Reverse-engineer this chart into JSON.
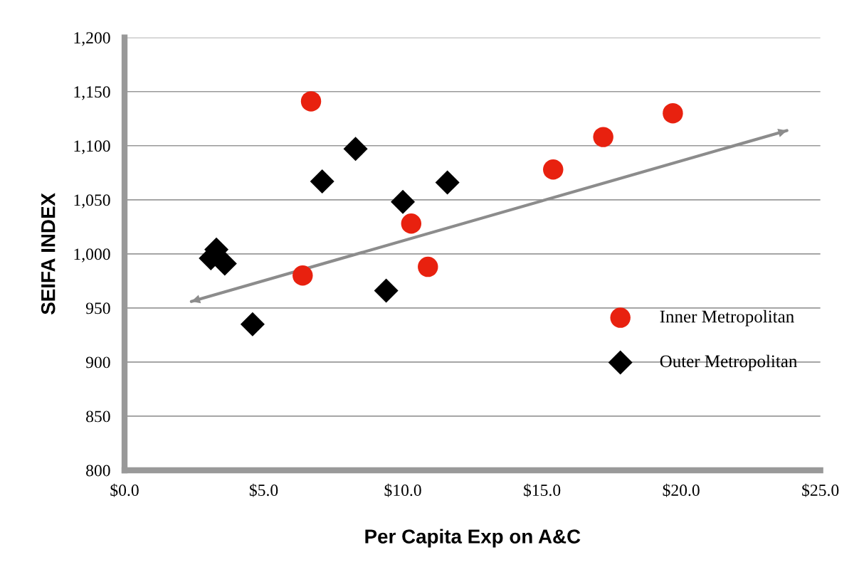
{
  "chart_data": {
    "type": "scatter",
    "xlabel": "Per Capita Exp on A&C",
    "ylabel": "SEIFA INDEX",
    "series": [
      {
        "name": "Inner Metropolitan",
        "color": "#e8210f",
        "marker": "circle",
        "x": [
          6.7,
          6.4,
          10.3,
          10.9,
          15.4,
          17.2,
          19.7
        ],
        "values": [
          1141,
          980,
          1028,
          988,
          1078,
          1108,
          1130
        ]
      },
      {
        "name": "Outer Metropolitan",
        "color": "#000000",
        "marker": "diamond",
        "x": [
          3.1,
          3.3,
          3.6,
          4.6,
          7.1,
          8.3,
          9.4,
          10.0,
          11.6
        ],
        "values": [
          996,
          1004,
          991,
          935,
          1067,
          1097,
          966,
          1048,
          1066
        ]
      },
      {
        "type": "line",
        "color": "#8c8c8c",
        "x": [
          2.4,
          23.8
        ],
        "values": [
          956,
          1114
        ]
      }
    ],
    "xlim": [
      0,
      25
    ],
    "ylim": [
      800,
      1200
    ],
    "xticks": [
      {
        "value": 0,
        "label": "$0.0"
      },
      {
        "value": 5,
        "label": "$5.0"
      },
      {
        "value": 10,
        "label": "$10.0"
      },
      {
        "value": 15,
        "label": "$15.0"
      },
      {
        "value": 20,
        "label": "$20.0"
      },
      {
        "value": 25,
        "label": "$25.0"
      }
    ],
    "yticks": [
      {
        "value": 800,
        "label": "800"
      },
      {
        "value": 850,
        "label": "850"
      },
      {
        "value": 900,
        "label": "900"
      },
      {
        "value": 950,
        "label": "950"
      },
      {
        "value": 1000,
        "label": "1,000"
      },
      {
        "value": 1050,
        "label": "1,050"
      },
      {
        "value": 1100,
        "label": "1,100"
      },
      {
        "value": 1150,
        "label": "1,150"
      },
      {
        "value": 1200,
        "label": "1,200"
      }
    ],
    "grid": "y",
    "legend": "right"
  }
}
